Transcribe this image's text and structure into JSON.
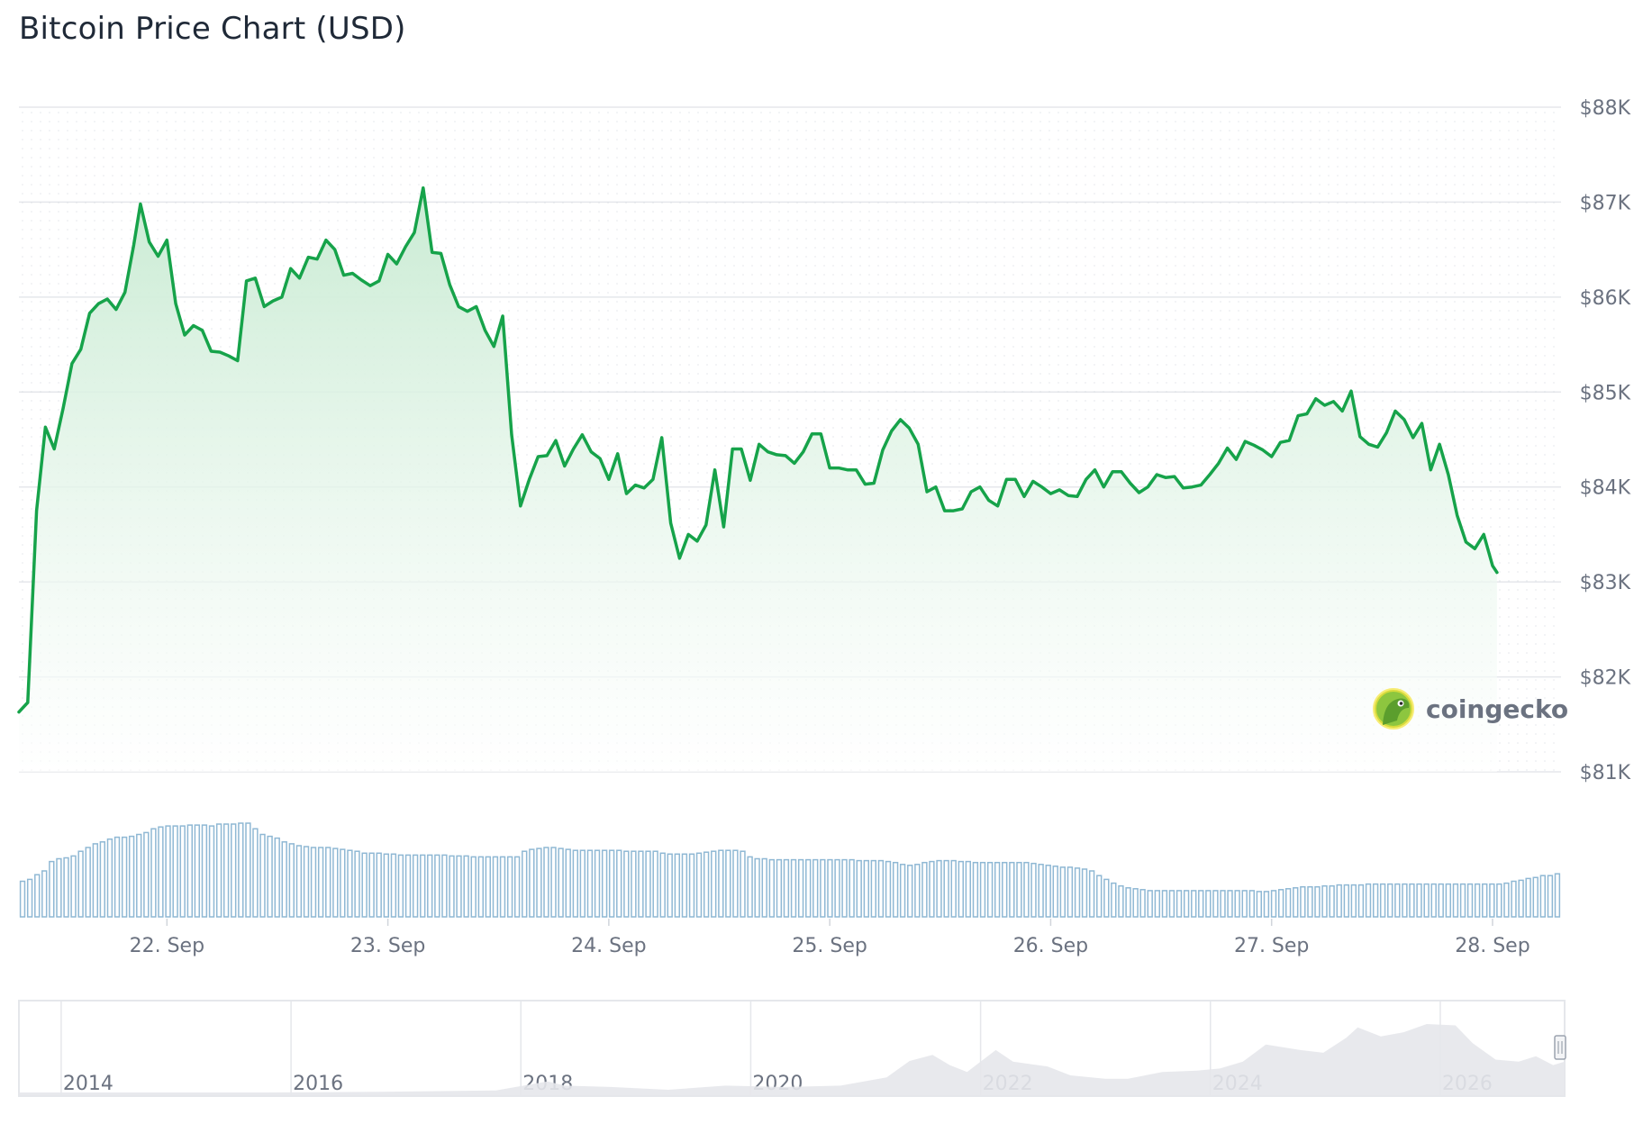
{
  "title": "Bitcoin Price Chart (USD)",
  "brand": {
    "name": "coingecko",
    "icon": "gecko-logo-icon"
  },
  "colors": {
    "line": "#16a34a",
    "area_top": "#c9ebd3",
    "grid": "#e5e7eb",
    "volume": "#8fb8d4",
    "navigator_area": "#e5e7eb"
  },
  "chart_data": [
    {
      "type": "area",
      "name": "price",
      "title": "Bitcoin Price Chart (USD)",
      "ylim": [
        81000,
        88000
      ],
      "yticks": [
        {
          "value": 88000,
          "label": "$88K"
        },
        {
          "value": 87000,
          "label": "$87K"
        },
        {
          "value": 86000,
          "label": "$86K"
        },
        {
          "value": 85000,
          "label": "$85K"
        },
        {
          "value": 84000,
          "label": "$84K"
        },
        {
          "value": 83000,
          "label": "$83K"
        },
        {
          "value": 82000,
          "label": "$82K"
        },
        {
          "value": 81000,
          "label": "$81K"
        }
      ],
      "x_range_days": [
        21.33,
        28.31
      ],
      "xticks": [
        {
          "value": 22,
          "label": "22. Sep"
        },
        {
          "value": 23,
          "label": "23. Sep"
        },
        {
          "value": 24,
          "label": "24. Sep"
        },
        {
          "value": 25,
          "label": "25. Sep"
        },
        {
          "value": 26,
          "label": "26. Sep"
        },
        {
          "value": 27,
          "label": "27. Sep"
        },
        {
          "value": 28,
          "label": "28. Sep"
        }
      ],
      "grid": true,
      "points": [
        [
          21.33,
          81630
        ],
        [
          21.37,
          81730
        ],
        [
          21.41,
          83750
        ],
        [
          21.45,
          84630
        ],
        [
          21.49,
          84400
        ],
        [
          21.53,
          84830
        ],
        [
          21.57,
          85300
        ],
        [
          21.61,
          85450
        ],
        [
          21.65,
          85830
        ],
        [
          21.69,
          85930
        ],
        [
          21.73,
          85980
        ],
        [
          21.77,
          85870
        ],
        [
          21.81,
          86050
        ],
        [
          21.85,
          86550
        ],
        [
          21.88,
          86980
        ],
        [
          21.92,
          86580
        ],
        [
          21.96,
          86430
        ],
        [
          22.0,
          86600
        ],
        [
          22.04,
          85930
        ],
        [
          22.08,
          85600
        ],
        [
          22.12,
          85700
        ],
        [
          22.16,
          85650
        ],
        [
          22.2,
          85430
        ],
        [
          22.24,
          85420
        ],
        [
          22.28,
          85380
        ],
        [
          22.32,
          85330
        ],
        [
          22.36,
          86170
        ],
        [
          22.4,
          86200
        ],
        [
          22.44,
          85900
        ],
        [
          22.48,
          85960
        ],
        [
          22.52,
          86000
        ],
        [
          22.56,
          86300
        ],
        [
          22.6,
          86200
        ],
        [
          22.64,
          86420
        ],
        [
          22.68,
          86400
        ],
        [
          22.72,
          86600
        ],
        [
          22.76,
          86500
        ],
        [
          22.8,
          86230
        ],
        [
          22.84,
          86250
        ],
        [
          22.88,
          86180
        ],
        [
          22.92,
          86120
        ],
        [
          22.96,
          86170
        ],
        [
          23.0,
          86450
        ],
        [
          23.04,
          86350
        ],
        [
          23.08,
          86530
        ],
        [
          23.12,
          86680
        ],
        [
          23.16,
          87150
        ],
        [
          23.2,
          86470
        ],
        [
          23.24,
          86460
        ],
        [
          23.28,
          86130
        ],
        [
          23.32,
          85900
        ],
        [
          23.36,
          85850
        ],
        [
          23.4,
          85900
        ],
        [
          23.44,
          85650
        ],
        [
          23.48,
          85480
        ],
        [
          23.52,
          85800
        ],
        [
          23.56,
          84550
        ],
        [
          23.6,
          83800
        ],
        [
          23.64,
          84080
        ],
        [
          23.68,
          84320
        ],
        [
          23.72,
          84330
        ],
        [
          23.76,
          84490
        ],
        [
          23.8,
          84220
        ],
        [
          23.84,
          84400
        ],
        [
          23.88,
          84550
        ],
        [
          23.92,
          84370
        ],
        [
          23.96,
          84300
        ],
        [
          24.0,
          84080
        ],
        [
          24.04,
          84350
        ],
        [
          24.08,
          83930
        ],
        [
          24.12,
          84020
        ],
        [
          24.16,
          83990
        ],
        [
          24.2,
          84080
        ],
        [
          24.24,
          84520
        ],
        [
          24.28,
          83620
        ],
        [
          24.32,
          83250
        ],
        [
          24.36,
          83500
        ],
        [
          24.4,
          83430
        ],
        [
          24.44,
          83600
        ],
        [
          24.48,
          84180
        ],
        [
          24.52,
          83580
        ],
        [
          24.56,
          84400
        ],
        [
          24.6,
          84400
        ],
        [
          24.64,
          84070
        ],
        [
          24.68,
          84450
        ],
        [
          24.72,
          84370
        ],
        [
          24.76,
          84340
        ],
        [
          24.8,
          84330
        ],
        [
          24.84,
          84250
        ],
        [
          24.88,
          84370
        ],
        [
          24.92,
          84560
        ],
        [
          24.96,
          84560
        ],
        [
          25.0,
          84200
        ],
        [
          25.04,
          84200
        ],
        [
          25.08,
          84180
        ],
        [
          25.12,
          84180
        ],
        [
          25.16,
          84030
        ],
        [
          25.2,
          84040
        ],
        [
          25.24,
          84390
        ],
        [
          25.28,
          84590
        ],
        [
          25.32,
          84710
        ],
        [
          25.36,
          84620
        ],
        [
          25.4,
          84450
        ],
        [
          25.44,
          83950
        ],
        [
          25.48,
          84000
        ],
        [
          25.52,
          83750
        ],
        [
          25.56,
          83750
        ],
        [
          25.6,
          83770
        ],
        [
          25.64,
          83950
        ],
        [
          25.68,
          84000
        ],
        [
          25.72,
          83860
        ],
        [
          25.76,
          83800
        ],
        [
          25.8,
          84080
        ],
        [
          25.84,
          84080
        ],
        [
          25.88,
          83900
        ],
        [
          25.92,
          84060
        ],
        [
          25.96,
          84000
        ],
        [
          26.0,
          83930
        ],
        [
          26.04,
          83970
        ],
        [
          26.08,
          83910
        ],
        [
          26.12,
          83900
        ],
        [
          26.16,
          84080
        ],
        [
          26.2,
          84180
        ],
        [
          26.24,
          84000
        ],
        [
          26.28,
          84160
        ],
        [
          26.32,
          84160
        ],
        [
          26.36,
          84040
        ],
        [
          26.4,
          83940
        ],
        [
          26.44,
          84000
        ],
        [
          26.48,
          84130
        ],
        [
          26.52,
          84100
        ],
        [
          26.56,
          84110
        ],
        [
          26.6,
          83990
        ],
        [
          26.64,
          84000
        ],
        [
          26.68,
          84020
        ],
        [
          26.72,
          84130
        ],
        [
          26.76,
          84250
        ],
        [
          26.8,
          84410
        ],
        [
          26.84,
          84290
        ],
        [
          26.88,
          84480
        ],
        [
          26.92,
          84440
        ],
        [
          26.96,
          84390
        ],
        [
          27.0,
          84320
        ],
        [
          27.04,
          84470
        ],
        [
          27.08,
          84490
        ],
        [
          27.12,
          84750
        ],
        [
          27.16,
          84770
        ],
        [
          27.2,
          84930
        ],
        [
          27.24,
          84860
        ],
        [
          27.28,
          84900
        ],
        [
          27.32,
          84800
        ],
        [
          27.36,
          85010
        ],
        [
          27.4,
          84530
        ],
        [
          27.44,
          84450
        ],
        [
          27.48,
          84420
        ],
        [
          27.52,
          84570
        ],
        [
          27.56,
          84800
        ],
        [
          27.6,
          84710
        ],
        [
          27.64,
          84520
        ],
        [
          27.68,
          84670
        ],
        [
          27.72,
          84180
        ],
        [
          27.76,
          84450
        ],
        [
          27.8,
          84130
        ],
        [
          27.84,
          83700
        ],
        [
          27.88,
          83420
        ],
        [
          27.92,
          83350
        ],
        [
          27.96,
          83500
        ],
        [
          28.0,
          83170
        ],
        [
          28.02,
          83100
        ]
      ]
    },
    {
      "type": "bar",
      "name": "volume",
      "values": [
        0.38,
        0.4,
        0.45,
        0.49,
        0.59,
        0.62,
        0.63,
        0.65,
        0.7,
        0.74,
        0.78,
        0.8,
        0.83,
        0.85,
        0.85,
        0.86,
        0.88,
        0.9,
        0.94,
        0.96,
        0.97,
        0.97,
        0.97,
        0.98,
        0.98,
        0.98,
        0.97,
        0.99,
        0.99,
        0.99,
        1.0,
        1.0,
        0.94,
        0.88,
        0.86,
        0.84,
        0.8,
        0.78,
        0.76,
        0.75,
        0.74,
        0.74,
        0.74,
        0.73,
        0.72,
        0.71,
        0.7,
        0.68,
        0.68,
        0.68,
        0.67,
        0.67,
        0.66,
        0.66,
        0.66,
        0.66,
        0.66,
        0.66,
        0.66,
        0.65,
        0.65,
        0.65,
        0.64,
        0.64,
        0.64,
        0.64,
        0.64,
        0.64,
        0.64,
        0.7,
        0.72,
        0.73,
        0.74,
        0.74,
        0.73,
        0.72,
        0.71,
        0.71,
        0.71,
        0.71,
        0.71,
        0.71,
        0.71,
        0.7,
        0.7,
        0.7,
        0.7,
        0.7,
        0.68,
        0.67,
        0.67,
        0.67,
        0.67,
        0.68,
        0.69,
        0.7,
        0.71,
        0.71,
        0.71,
        0.7,
        0.64,
        0.62,
        0.62,
        0.61,
        0.61,
        0.61,
        0.61,
        0.61,
        0.61,
        0.61,
        0.61,
        0.61,
        0.61,
        0.61,
        0.61,
        0.6,
        0.6,
        0.6,
        0.6,
        0.59,
        0.58,
        0.56,
        0.55,
        0.56,
        0.58,
        0.59,
        0.6,
        0.6,
        0.6,
        0.59,
        0.59,
        0.58,
        0.58,
        0.58,
        0.58,
        0.58,
        0.58,
        0.58,
        0.58,
        0.57,
        0.56,
        0.55,
        0.54,
        0.53,
        0.53,
        0.52,
        0.51,
        0.49,
        0.44,
        0.4,
        0.36,
        0.33,
        0.31,
        0.3,
        0.29,
        0.28,
        0.28,
        0.28,
        0.28,
        0.28,
        0.28,
        0.28,
        0.28,
        0.28,
        0.28,
        0.28,
        0.28,
        0.28,
        0.28,
        0.28,
        0.27,
        0.27,
        0.28,
        0.29,
        0.3,
        0.31,
        0.32,
        0.32,
        0.32,
        0.33,
        0.33,
        0.34,
        0.34,
        0.34,
        0.34,
        0.35,
        0.35,
        0.35,
        0.35,
        0.35,
        0.35,
        0.35,
        0.35,
        0.35,
        0.35,
        0.35,
        0.35,
        0.35,
        0.35,
        0.35,
        0.35,
        0.35,
        0.35,
        0.35,
        0.36,
        0.38,
        0.39,
        0.41,
        0.42,
        0.44,
        0.44,
        0.46
      ]
    },
    {
      "type": "area",
      "name": "navigator",
      "xlim": [
        2013.35,
        2026.8
      ],
      "xticks": [
        {
          "value": 2014,
          "label": "2014"
        },
        {
          "value": 2016,
          "label": "2016"
        },
        {
          "value": 2018,
          "label": "2018"
        },
        {
          "value": 2020,
          "label": "2020"
        },
        {
          "value": 2022,
          "label": "2022"
        },
        {
          "value": 2024,
          "label": "2024"
        },
        {
          "value": 2026,
          "label": "2026"
        }
      ],
      "points": [
        [
          2013.35,
          0.0
        ],
        [
          2014.5,
          0.0
        ],
        [
          2015.5,
          0.0
        ],
        [
          2016.5,
          0.01
        ],
        [
          2017.5,
          0.03
        ],
        [
          2017.95,
          0.16
        ],
        [
          2018.1,
          0.1
        ],
        [
          2018.5,
          0.08
        ],
        [
          2019.0,
          0.04
        ],
        [
          2019.5,
          0.1
        ],
        [
          2020.0,
          0.08
        ],
        [
          2020.5,
          0.1
        ],
        [
          2020.9,
          0.22
        ],
        [
          2021.1,
          0.46
        ],
        [
          2021.3,
          0.55
        ],
        [
          2021.45,
          0.4
        ],
        [
          2021.6,
          0.3
        ],
        [
          2021.85,
          0.62
        ],
        [
          2022.0,
          0.45
        ],
        [
          2022.3,
          0.38
        ],
        [
          2022.5,
          0.25
        ],
        [
          2022.8,
          0.2
        ],
        [
          2023.0,
          0.2
        ],
        [
          2023.3,
          0.3
        ],
        [
          2023.6,
          0.32
        ],
        [
          2023.8,
          0.35
        ],
        [
          2024.0,
          0.45
        ],
        [
          2024.2,
          0.7
        ],
        [
          2024.5,
          0.62
        ],
        [
          2024.7,
          0.58
        ],
        [
          2024.9,
          0.8
        ],
        [
          2025.0,
          0.95
        ],
        [
          2025.2,
          0.82
        ],
        [
          2025.4,
          0.88
        ],
        [
          2025.6,
          1.0
        ],
        [
          2025.85,
          0.98
        ],
        [
          2026.0,
          0.72
        ],
        [
          2026.2,
          0.48
        ],
        [
          2026.4,
          0.45
        ],
        [
          2026.55,
          0.53
        ],
        [
          2026.7,
          0.4
        ],
        [
          2026.8,
          0.45
        ]
      ]
    }
  ]
}
